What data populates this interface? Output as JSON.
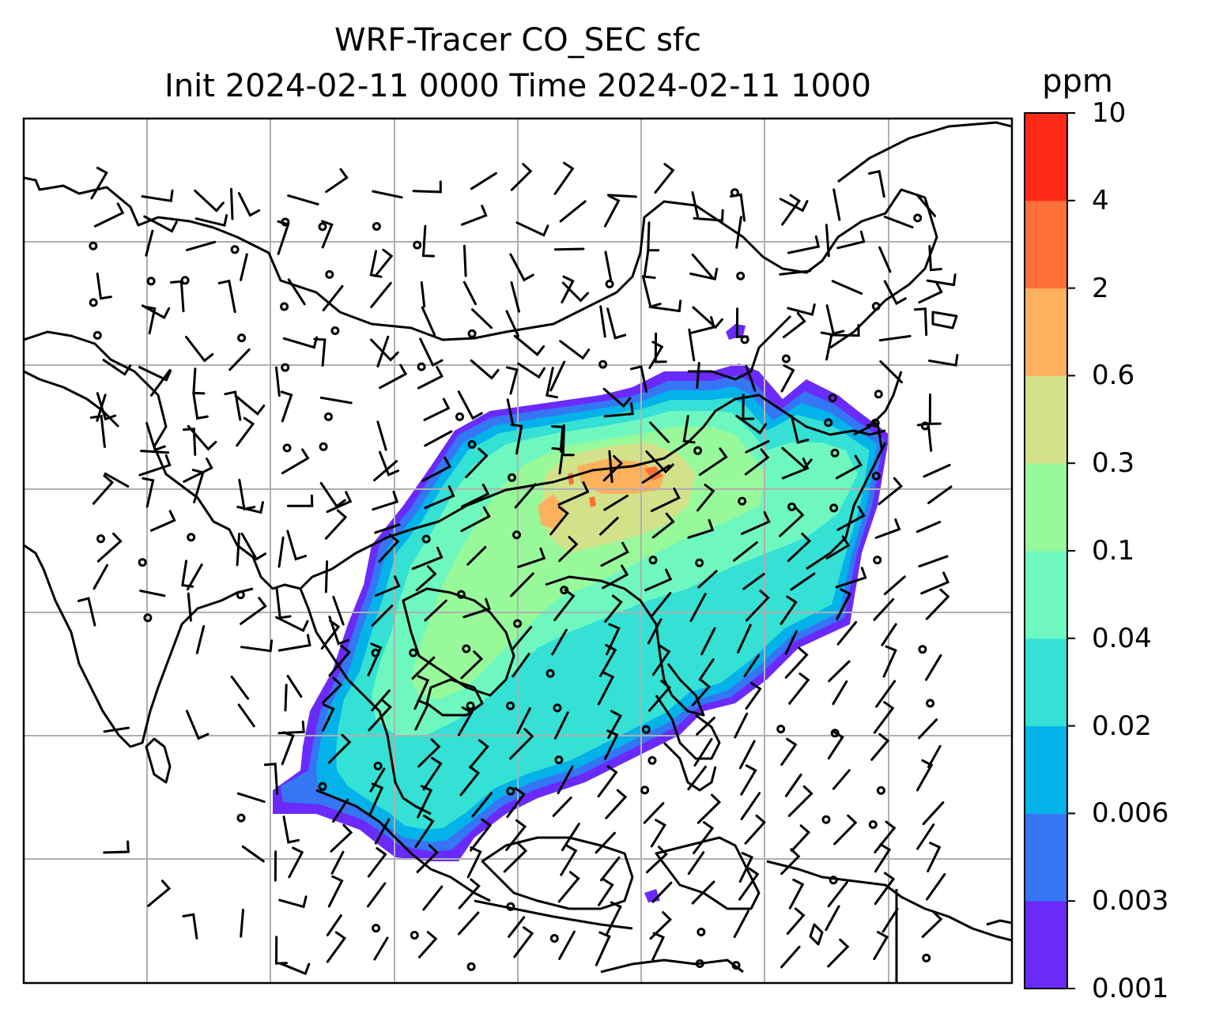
{
  "title": {
    "line1": "WRF-Tracer CO_SEC sfc",
    "line2": "Init 2024-02-11 0000 Time 2024-02-11 1000"
  },
  "map": {
    "type": "filled-contour-with-wind-barbs",
    "field": "CO_SEC",
    "level": "sfc",
    "region": "East and Southeast Asia",
    "gridlines": true,
    "coastlines": true,
    "plume_colors": [
      "#6a2bfa",
      "#3476f4",
      "#04b2ea",
      "#35e0d4",
      "#6ef8c0",
      "#98f99a",
      "#d1e28a",
      "#fdb15d",
      "#fd7138",
      "#fc2a16"
    ]
  },
  "colorbar": {
    "unit": "ppm",
    "ticks": [
      "0.001",
      "0.003",
      "0.006",
      "0.02",
      "0.04",
      "0.1",
      "0.3",
      "0.6",
      "2",
      "4",
      "10"
    ],
    "colors": [
      "#6a2bfa",
      "#3476f4",
      "#04b2ea",
      "#35e0d4",
      "#6ef8c0",
      "#98f99a",
      "#d1e28a",
      "#fdb15d",
      "#fd7138",
      "#fc2a16"
    ]
  }
}
